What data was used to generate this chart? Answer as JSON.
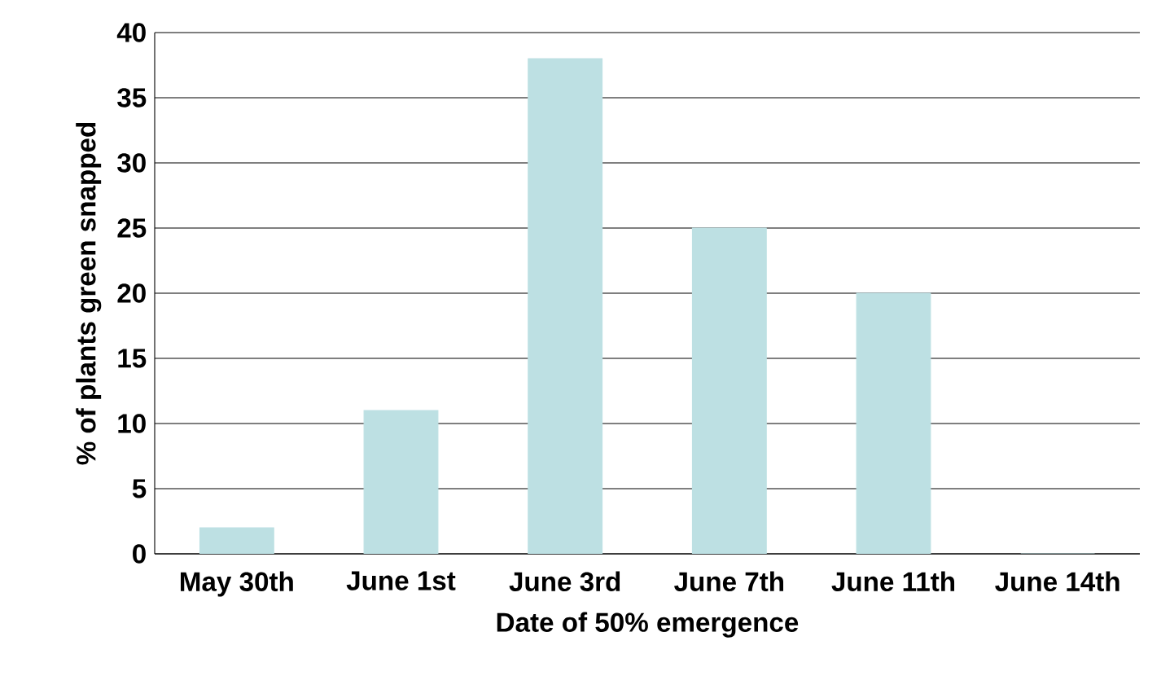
{
  "chart_data": {
    "type": "bar",
    "xlabel": "Date of 50% emergence",
    "ylabel": "% of plants green snapped",
    "categories": [
      "May 30th",
      "June 1st",
      "June 3rd",
      "June 7th",
      "June 11th",
      "June 14th"
    ],
    "values": [
      2,
      11,
      38,
      25,
      20,
      0
    ],
    "color": "#bde0e3",
    "ylim": [
      0,
      40
    ],
    "yticks": [
      0,
      5,
      10,
      15,
      20,
      25,
      30,
      35,
      40
    ],
    "grid": "y"
  }
}
